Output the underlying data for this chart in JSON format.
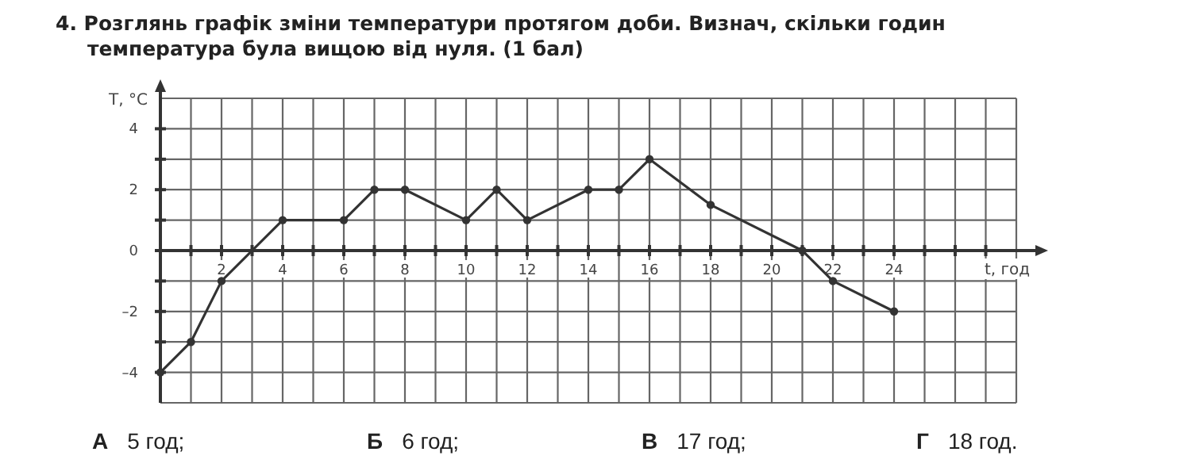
{
  "chart_data": {
    "type": "line",
    "title": "4. Розглянь графік зміни температури протягом доби. Визнач, скільки годин температура була вищою від нуля. (1 бал)",
    "xlabel": "t, год",
    "ylabel": "T, °C",
    "x": [
      0,
      1,
      2,
      4,
      6,
      7,
      8,
      10,
      11,
      12,
      14,
      15,
      16,
      18,
      21,
      22,
      24
    ],
    "series": [
      {
        "color": "#333333",
        "values": [
          -4,
          -3,
          -1,
          1,
          1,
          2,
          2,
          1,
          2,
          1,
          2,
          2,
          3,
          1.5,
          0,
          -1,
          -2
        ]
      }
    ],
    "xlim": [
      0,
      28
    ],
    "ylim": [
      -5,
      5
    ],
    "xticks": [
      {
        "value": 1,
        "label": null
      },
      2,
      {
        "value": 3,
        "label": null
      },
      4,
      {
        "value": 5,
        "label": null
      },
      6,
      {
        "value": 7,
        "label": null
      },
      8,
      {
        "value": 9,
        "label": null
      },
      10,
      {
        "value": 11,
        "label": null
      },
      12,
      {
        "value": 13,
        "label": null
      },
      14,
      {
        "value": 15,
        "label": null
      },
      16,
      {
        "value": 17,
        "label": null
      },
      18,
      {
        "value": 19,
        "label": null
      },
      20,
      {
        "value": 21,
        "label": null
      },
      22,
      {
        "value": 23,
        "label": null
      },
      24,
      {
        "value": 25,
        "label": null
      },
      {
        "value": 26,
        "label": null
      },
      {
        "value": 27,
        "label": null
      }
    ],
    "yticks": [
      {
        "value": -4,
        "label": "–4"
      },
      {
        "value": -3,
        "label": null
      },
      {
        "value": -2,
        "label": "–2"
      },
      {
        "value": -1,
        "label": null
      },
      0,
      {
        "value": 1,
        "label": null
      },
      2,
      {
        "value": 3,
        "label": null
      },
      4
    ],
    "grid": true,
    "marker": "circle",
    "line_style": "solid",
    "annotations": [
      "А 5 год;",
      "Б 6 год;",
      "В 17 год;",
      "Г 18 год."
    ]
  }
}
